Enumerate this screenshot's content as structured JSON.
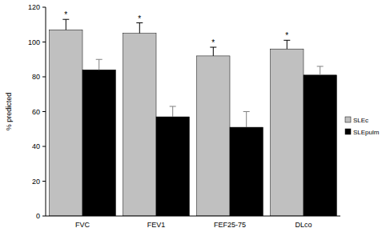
{
  "chart_data": {
    "type": "bar",
    "y_label": "% predicted",
    "categories": [
      "FVC",
      "FEV1",
      "FEF25-75",
      "DLco"
    ],
    "series": [
      {
        "name": "SLEc",
        "color": "#c0c0c0",
        "values": [
          107,
          105,
          92,
          96
        ],
        "errors": [
          6,
          6,
          5,
          5
        ]
      },
      {
        "name": "SLEpulm",
        "color": "#000000",
        "values": [
          84,
          57,
          51,
          81
        ],
        "errors": [
          6,
          6,
          9,
          5
        ]
      }
    ],
    "annotations": [
      "*",
      "*",
      "*",
      "*"
    ],
    "ylim": [
      0,
      120
    ],
    "yticks": [
      0,
      20,
      40,
      60,
      80,
      100,
      120
    ],
    "grid": false,
    "legend": "right"
  }
}
